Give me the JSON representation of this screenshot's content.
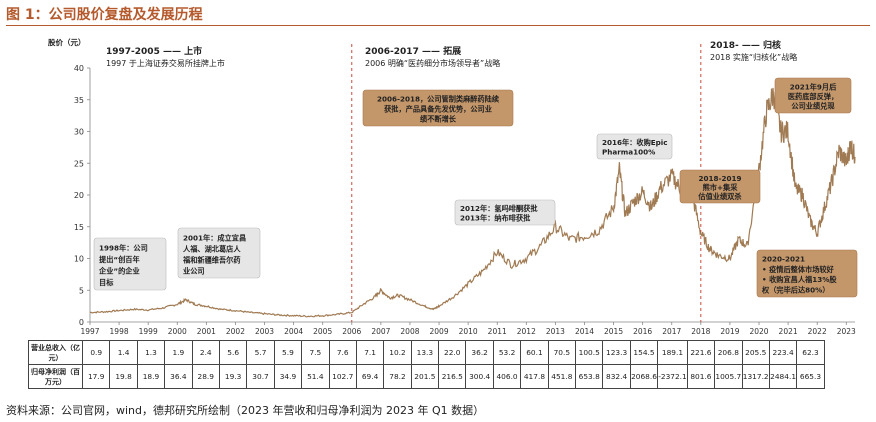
{
  "figure": {
    "title": "图 1：公司股价复盘及发展历程",
    "source": "资料来源：公司官网，wind，德邦研究所绘制（2023 年营收和归母净利润为 2023 年 Q1 数据）"
  },
  "chart_data": {
    "type": "line",
    "ylabel": "股价（元）",
    "ylim": [
      0,
      40
    ],
    "yticks": [
      0,
      5,
      10,
      15,
      20,
      25,
      30,
      35,
      40
    ],
    "xlim": [
      1997,
      2023.3
    ],
    "x_tick_labels": [
      "1997",
      "1998",
      "1999",
      "2000",
      "2001",
      "2002",
      "2003",
      "2004",
      "2005",
      "2006",
      "2007",
      "2008",
      "2009",
      "2010",
      "2011",
      "2012",
      "2013",
      "2014",
      "2015",
      "2016",
      "2017",
      "2018",
      "2019",
      "2020",
      "2021",
      "2022",
      "2023"
    ],
    "series": [
      {
        "x": [
          1997,
          1997.5,
          1998,
          1998.5,
          1999,
          1999.5,
          2000,
          2000.3,
          2000.6,
          2001,
          2001.5,
          2002,
          2002.5,
          2003,
          2003.5,
          2004,
          2004.5,
          2005,
          2005.5,
          2006,
          2006.4,
          2006.8,
          2007,
          2007.3,
          2007.6,
          2008,
          2008.5,
          2008.8,
          2009,
          2009.5,
          2010,
          2010.5,
          2011,
          2011.5,
          2012,
          2012.5,
          2013,
          2013.5,
          2014,
          2014.5,
          2015,
          2015.2,
          2015.4,
          2015.7,
          2016,
          2016.3,
          2016.6,
          2017,
          2017.3,
          2017.7,
          2018,
          2018.3,
          2018.6,
          2019,
          2019.3,
          2019.6,
          2020,
          2020.25,
          2020.5,
          2020.75,
          2021,
          2021.25,
          2021.5,
          2021.75,
          2022,
          2022.25,
          2022.5,
          2022.75,
          2023,
          2023.15,
          2023.3
        ],
        "values": [
          1.5,
          1.6,
          1.8,
          2.0,
          1.9,
          2.2,
          2.8,
          3.5,
          2.8,
          2.5,
          2.0,
          1.8,
          1.5,
          1.3,
          1.1,
          1.0,
          0.9,
          1.0,
          1.2,
          1.5,
          2.8,
          4.0,
          5.0,
          3.8,
          4.2,
          3.5,
          2.5,
          2.0,
          2.5,
          4.0,
          6.0,
          8.0,
          11.0,
          9.0,
          10.0,
          12.0,
          15.0,
          13.0,
          13.5,
          14.5,
          18.0,
          24.0,
          17.0,
          19.0,
          20.5,
          18.0,
          21.0,
          23.0,
          21.0,
          20.0,
          14.0,
          11.5,
          10.5,
          10.0,
          13.0,
          12.0,
          24.0,
          33.0,
          36.0,
          30.0,
          30.0,
          21.0,
          20.0,
          16.0,
          14.0,
          18.0,
          22.0,
          27.0,
          25.0,
          28.0,
          26.0
        ]
      }
    ],
    "phases": [
      {
        "title": "1997-2005 —— 上市",
        "desc": "1997 于上海证券交易所挂牌上市"
      },
      {
        "title": "2006-2017 —— 拓展",
        "desc": "2006 明确“医药细分市场领导者”战略"
      },
      {
        "title": "2018- —— 归核",
        "desc": "2018 实施“归核化”战略"
      }
    ],
    "annotations": [
      {
        "text": "1998年：公司提出“创百年企业”的企业目标",
        "style": "light"
      },
      {
        "text": "2001年：成立宜昌人福、湖北葛店人福和新疆维吾尔药业公司",
        "style": "light"
      },
      {
        "text": "2006-2018，公司管制麻醉药陆续获批，产品具备先发优势，公司业绩不断增长",
        "style": "dark"
      },
      {
        "text": "2012年：氢吗啡酮获批",
        "style": "light"
      },
      {
        "text": "2013年：纳布啡获批",
        "style": "light"
      },
      {
        "text": "2016年：收购Epic Pharma100%",
        "style": "light"
      },
      {
        "text": "2018-2019",
        "style": "dark"
      },
      {
        "text": "熊市+集采",
        "style": "dark"
      },
      {
        "text": "估值业绩双杀",
        "style": "dark"
      },
      {
        "text": "2021年9月后医药底部反弹，公司业绩兑现",
        "style": "dark"
      },
      {
        "text": "2020-2021",
        "style": "dark"
      },
      {
        "text": "• 疫情后整体市场较好",
        "style": "dark"
      },
      {
        "text": "• 收购宜昌人福13%股权（完毕后达80%）",
        "style": "dark"
      }
    ],
    "colors": {
      "line": "#a07a52",
      "title": "#b55a2c",
      "box_light": "#e6e6e6",
      "box_dark": "#c4976b",
      "dashed": "#c0392b"
    }
  },
  "table": {
    "row1_label": "营业总收入（亿元）",
    "row2_label": "归母净利润（百万元）",
    "revenue": [
      "0.9",
      "1.4",
      "1.3",
      "1.9",
      "2.4",
      "5.6",
      "5.7",
      "5.9",
      "7.5",
      "7.6",
      "7.1",
      "10.2",
      "13.3",
      "22.0",
      "36.2",
      "53.2",
      "60.1",
      "70.5",
      "100.5",
      "123.3",
      "154.5",
      "189.1",
      "221.6",
      "206.8",
      "205.5",
      "223.4",
      "62.3"
    ],
    "profit": [
      "17.9",
      "19.8",
      "18.9",
      "36.4",
      "28.9",
      "19.3",
      "30.7",
      "34.9",
      "51.4",
      "102.7",
      "69.4",
      "78.2",
      "201.5",
      "216.5",
      "300.4",
      "406.0",
      "417.8",
      "451.8",
      "653.8",
      "832.4",
      "2068.6",
      "-2372.1",
      "801.6",
      "1005.7",
      "1317.2",
      "2484.1",
      "665.3"
    ]
  }
}
